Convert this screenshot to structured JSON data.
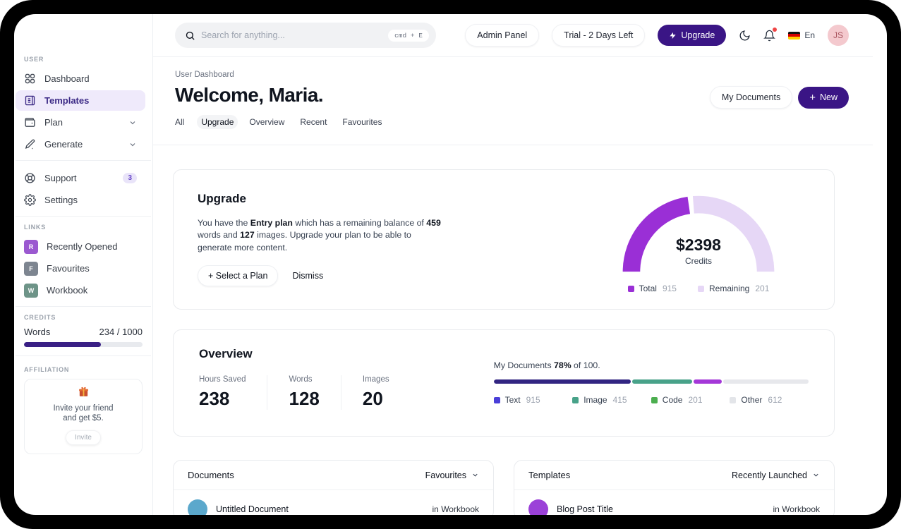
{
  "topbar": {
    "search_placeholder": "Search for anything...",
    "search_shortcut": "cmd + E",
    "admin_panel_label": "Admin Panel",
    "trial_label": "Trial - 2 Days Left",
    "upgrade_label": "Upgrade",
    "language_label": "En",
    "avatar_initials": "JS"
  },
  "sidebar": {
    "user_label": "USER",
    "items": [
      {
        "label": "Dashboard"
      },
      {
        "label": "Templates",
        "active": true
      },
      {
        "label": "Plan",
        "expandable": true
      },
      {
        "label": "Generate",
        "expandable": true
      }
    ],
    "support_label": "Support",
    "support_badge": "3",
    "settings_label": "Settings",
    "links_label": "LINKS",
    "links": [
      {
        "initial": "R",
        "label": "Recently Opened",
        "color": "#9b59d0"
      },
      {
        "initial": "F",
        "label": "Favourites",
        "color": "#7d8590"
      },
      {
        "initial": "W",
        "label": "Workbook",
        "color": "#6e9488"
      }
    ],
    "credits_label": "CREDITS",
    "credits": {
      "label": "Words",
      "value": "234 / 1000",
      "fill_pct": 65,
      "fill_color": "#3a2085"
    },
    "affiliation_label": "AFFILIATION",
    "affiliation": {
      "line1": "Invite your friend",
      "line2": "and get $5.",
      "button_label": "Invite"
    }
  },
  "header": {
    "breadcrumb": "User Dashboard",
    "title": "Welcome, Maria.",
    "my_documents_label": "My Documents",
    "new_label": "New",
    "tabs": [
      {
        "label": "All"
      },
      {
        "label": "Upgrade",
        "active": true
      },
      {
        "label": "Overview"
      },
      {
        "label": "Recent"
      },
      {
        "label": "Favourites"
      }
    ]
  },
  "upgrade_card": {
    "title": "Upgrade",
    "body_parts": [
      {
        "t": "You have the "
      },
      {
        "t": "Entry plan",
        "b": true
      },
      {
        "t": " which has a remaining balance of "
      },
      {
        "t": "459",
        "b": true
      },
      {
        "t": " words and "
      },
      {
        "t": "127",
        "b": true
      },
      {
        "t": " images. Upgrade your plan to be able to generate more content."
      }
    ],
    "select_plan_label": "Select a Plan",
    "dismiss_label": "Dismiss"
  },
  "overview_card": {
    "title": "Overview",
    "stats": [
      {
        "label": "Hours Saved",
        "value": "238"
      },
      {
        "label": "Words",
        "value": "128"
      },
      {
        "label": "Images",
        "value": "20"
      }
    ]
  },
  "documents_card": {
    "title": "Documents",
    "filter_label": "Favourites",
    "rows": [
      {
        "title": "Untitled Document",
        "meta": "in Workbook",
        "avatar_color": "#5ba8cc"
      }
    ]
  },
  "templates_card": {
    "title": "Templates",
    "filter_label": "Recently Launched",
    "rows": [
      {
        "title": "Blog Post Title",
        "meta": "in Workbook",
        "avatar_color": "#9b41d8"
      }
    ]
  },
  "chart_data": [
    {
      "type": "pie",
      "variant": "semi-donut-gauge",
      "center_value": "$2398",
      "center_label": "Credits",
      "series": [
        {
          "name": "Total",
          "value": 915,
          "color": "#9a2fd6"
        },
        {
          "name": "Remaining",
          "value": 201,
          "color": "#e6d7f6"
        }
      ],
      "visual_fraction_first": 0.465,
      "gap_degrees": 4,
      "legend_position": "bottom"
    },
    {
      "type": "bar",
      "variant": "stacked-progress",
      "label_parts": [
        {
          "t": "My Documents "
        },
        {
          "t": "78%",
          "b": true
        },
        {
          "t": " of 100."
        }
      ],
      "max": 100,
      "series": [
        {
          "name": "Text",
          "value": 915,
          "width_pct": 43.5,
          "color": "#322582",
          "legend_color": "#4a3fd8"
        },
        {
          "name": "Image",
          "value": 415,
          "width_pct": 19,
          "color": "#48a289",
          "legend_color": "#48a289"
        },
        {
          "name": "Code",
          "value": 201,
          "width_pct": 9,
          "color": "#a438d8",
          "legend_color": "#4cae4f"
        },
        {
          "name": "Other",
          "value": 612,
          "width_pct": 28,
          "color": "#e7e8ec",
          "legend_color": "#e3e5e9"
        }
      ],
      "legend_position": "bottom"
    }
  ]
}
